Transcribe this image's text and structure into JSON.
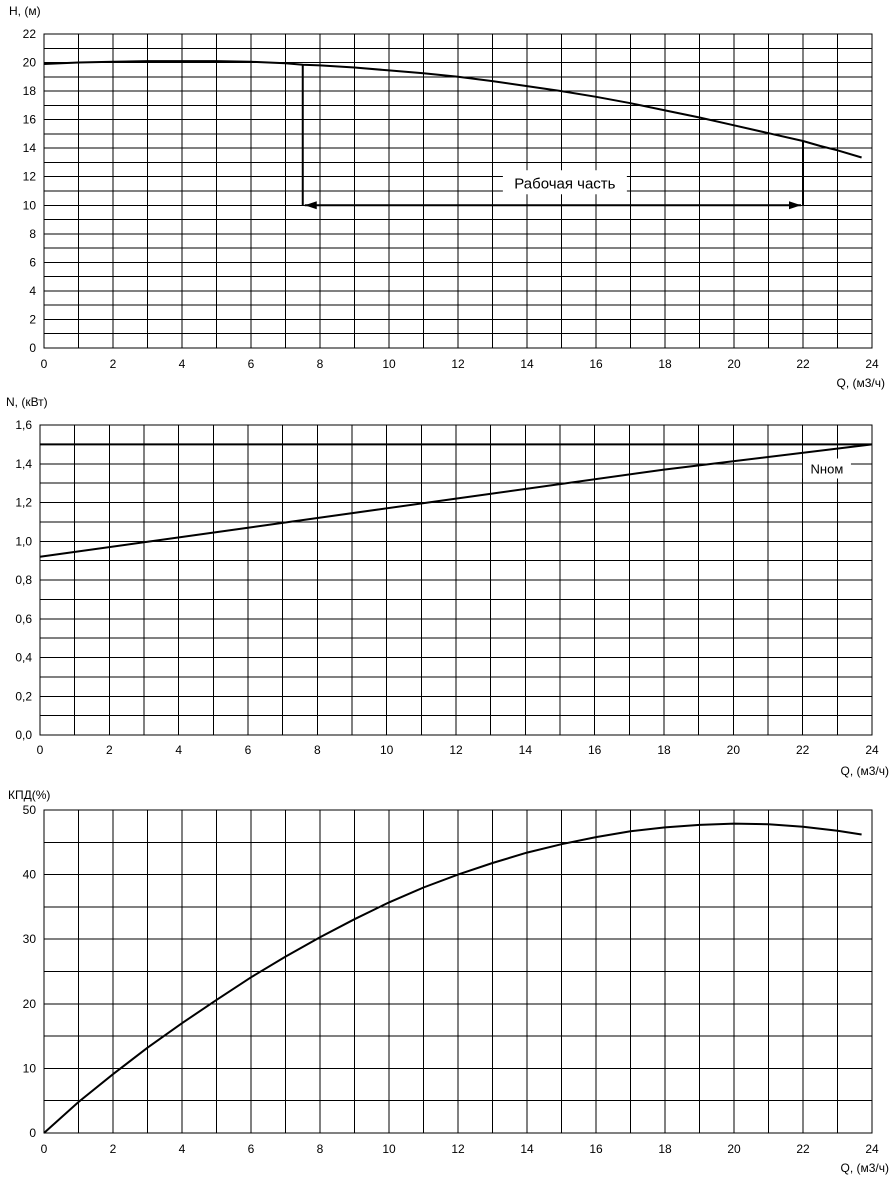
{
  "chart_data": [
    {
      "type": "line",
      "ylabel": "H, (м)",
      "xlabel": "Q, (м3/ч)",
      "xlim": [
        0,
        24
      ],
      "ylim": [
        0,
        22
      ],
      "xticks": [
        0,
        2,
        4,
        6,
        8,
        10,
        12,
        14,
        16,
        18,
        20,
        22,
        24
      ],
      "yticks": [
        0,
        2,
        4,
        6,
        8,
        10,
        12,
        14,
        16,
        18,
        20,
        22
      ],
      "ytick_labels": [
        "0",
        "2",
        "4",
        "6",
        "8",
        "10",
        "12",
        "14",
        "16",
        "18",
        "20",
        "22"
      ],
      "grid": true,
      "series": [
        {
          "x": [
            0,
            1,
            2,
            3,
            4,
            5,
            6,
            7,
            7.5,
            8,
            9,
            10,
            11,
            12,
            13,
            14,
            15,
            16,
            17,
            18,
            19,
            20,
            21,
            22,
            22.5,
            23,
            23.7
          ],
          "y": [
            19.9,
            20.0,
            20.05,
            20.1,
            20.1,
            20.1,
            20.05,
            19.95,
            19.85,
            19.8,
            19.65,
            19.45,
            19.25,
            19.0,
            18.7,
            18.35,
            18.0,
            17.6,
            17.15,
            16.65,
            16.15,
            15.6,
            15.05,
            14.5,
            14.15,
            13.85,
            13.35
          ]
        }
      ],
      "annotations": [
        {
          "type": "working-range",
          "text": "Рабочая часть",
          "x_start": 7.5,
          "x_end": 22,
          "y": 10
        }
      ]
    },
    {
      "type": "line",
      "ylabel": "N, (кВт)",
      "xlabel": "Q, (м3/ч)",
      "xlim": [
        0,
        24
      ],
      "ylim": [
        0,
        1.6
      ],
      "xticks": [
        0,
        2,
        4,
        6,
        8,
        10,
        12,
        14,
        16,
        18,
        20,
        22,
        24
      ],
      "yticks": [
        0,
        0.2,
        0.4,
        0.6,
        0.8,
        1.0,
        1.2,
        1.4,
        1.6
      ],
      "ytick_labels": [
        "0,0",
        "0,2",
        "0,4",
        "0,6",
        "0,8",
        "1,0",
        "1,2",
        "1,4",
        "1,6"
      ],
      "grid": true,
      "series": [
        {
          "x": [
            0,
            6,
            12,
            18,
            24
          ],
          "y": [
            0.92,
            1.07,
            1.22,
            1.37,
            1.5
          ]
        },
        {
          "x": [
            0,
            24
          ],
          "y": [
            1.5,
            1.5
          ]
        }
      ],
      "annotations": [
        {
          "text": "Nном",
          "x": 22.7,
          "y": 1.36
        }
      ]
    },
    {
      "type": "line",
      "ylabel": "КПД(%)",
      "xlabel": "Q, (м3/ч)",
      "xlim": [
        0,
        24
      ],
      "ylim": [
        0,
        50
      ],
      "xticks": [
        0,
        2,
        4,
        6,
        8,
        10,
        12,
        14,
        16,
        18,
        20,
        22,
        24
      ],
      "yticks": [
        0,
        10,
        20,
        30,
        40,
        50
      ],
      "ytick_labels": [
        "0",
        "10",
        "20",
        "30",
        "40",
        "50"
      ],
      "grid": true,
      "series": [
        {
          "x": [
            0,
            1,
            2,
            3,
            4,
            5,
            6,
            7,
            8,
            9,
            10,
            11,
            12,
            13,
            14,
            15,
            16,
            17,
            18,
            19,
            20,
            21,
            22,
            23,
            23.7
          ],
          "y": [
            0,
            4.8,
            9.1,
            13.2,
            17.0,
            20.6,
            24.1,
            27.3,
            30.3,
            33.1,
            35.7,
            38.0,
            40.0,
            41.8,
            43.4,
            44.7,
            45.8,
            46.7,
            47.3,
            47.7,
            47.9,
            47.8,
            47.4,
            46.8,
            46.2
          ]
        }
      ]
    }
  ]
}
